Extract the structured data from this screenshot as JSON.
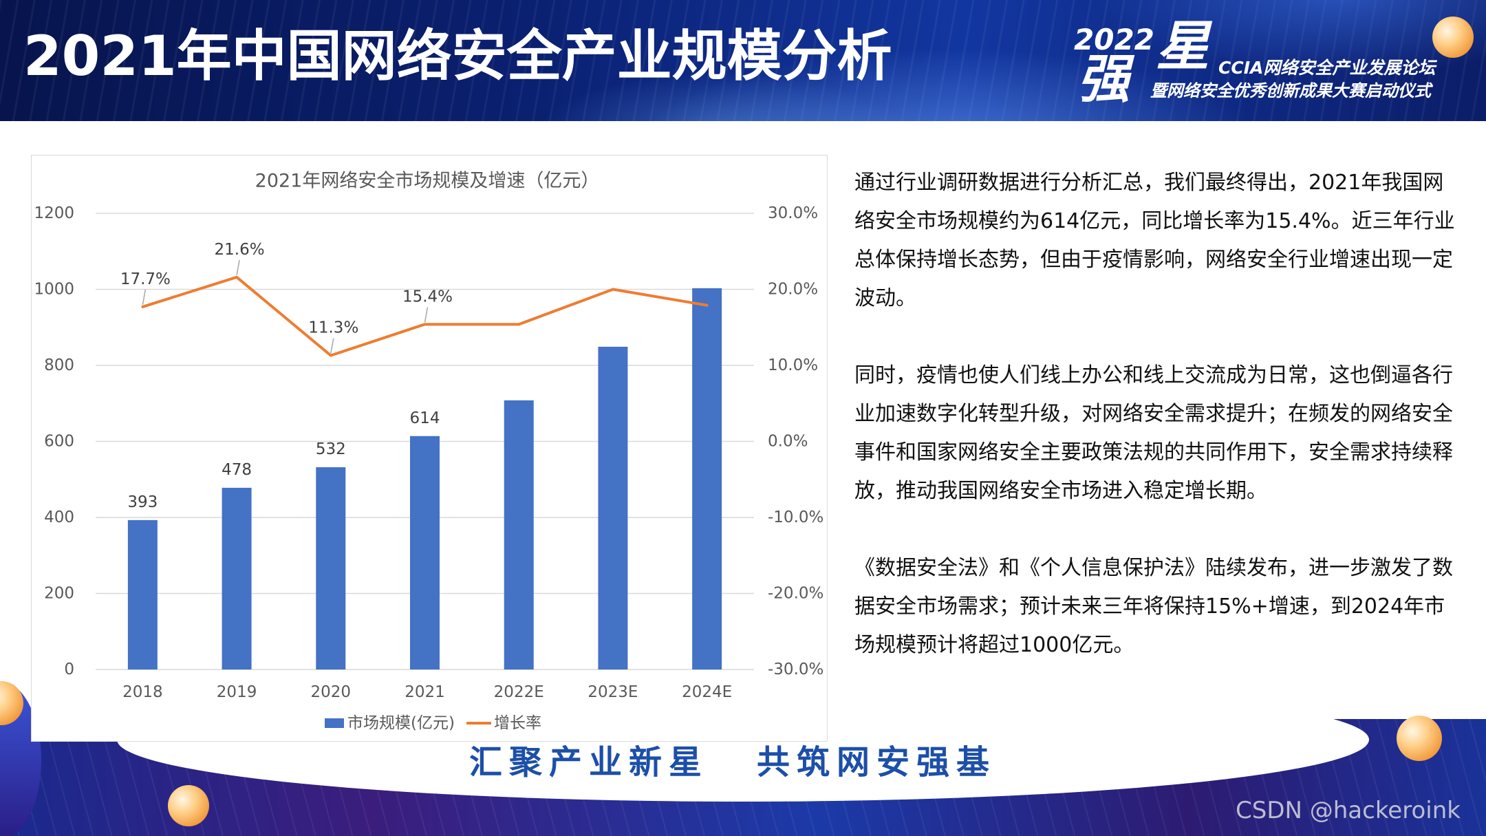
{
  "header": {
    "title": "2021年中国网络安全产业规模分析"
  },
  "logo": {
    "year": "2022",
    "char_top": "星",
    "char_bottom": "强",
    "line1": "CCIA网络安全产业发展论坛",
    "line2": "暨网络安全优秀创新成果大赛启动仪式"
  },
  "chart_data": {
    "type": "bar",
    "title": "2021年网络安全市场规模及增速（亿元）",
    "categories": [
      "2018",
      "2019",
      "2020",
      "2021",
      "2022E",
      "2023E",
      "2024E"
    ],
    "series": [
      {
        "name": "市场规模(亿元)",
        "type": "bar",
        "axis": "left",
        "values": [
          393,
          478,
          532,
          614,
          708,
          849,
          1003
        ],
        "data_labels": [
          "393",
          "478",
          "532",
          "614",
          "",
          "",
          ""
        ],
        "color": "#4472C4"
      },
      {
        "name": "增长率",
        "type": "line",
        "axis": "right",
        "unit": "%",
        "values": [
          17.7,
          21.6,
          11.3,
          15.4,
          15.4,
          20.0,
          17.9
        ],
        "data_labels": [
          "17.7%",
          "21.6%",
          "11.3%",
          "15.4%",
          "",
          "",
          ""
        ],
        "color": "#ED7D31"
      }
    ],
    "y_left": {
      "ylim": [
        0,
        1200
      ],
      "ticks": [
        "0",
        "200",
        "400",
        "600",
        "800",
        "1000",
        "1200"
      ]
    },
    "y_right": {
      "ylim": [
        -30,
        30
      ],
      "ticks": [
        "-30.0%",
        "-20.0%",
        "-10.0%",
        "0.0%",
        "10.0%",
        "20.0%",
        "30.0%"
      ]
    },
    "grid": true,
    "legend": "bottom"
  },
  "body": {
    "paragraphs": [
      "通过行业调研数据进行分析汇总，我们最终得出，2021年我国网络安全市场规模约为614亿元，同比增长率为15.4%。近三年行业总体保持增长态势，但由于疫情影响，网络安全行业增速出现一定波动。",
      "同时，疫情也使人们线上办公和线上交流成为日常，这也倒逼各行业加速数字化转型升级，对网络安全需求提升；在频发的网络安全事件和国家网络安全主要政策法规的共同作用下，安全需求持续释放，推动我国网络安全市场进入稳定增长期。",
      "《数据安全法》和《个人信息保护法》陆续发布，进一步激发了数据安全市场需求；预计未来三年将保持15%+增速，到2024年市场规模预计将超过1000亿元。"
    ]
  },
  "footer": {
    "slogan_left": "汇聚产业新星",
    "slogan_right": "共筑网安强基"
  },
  "watermark": "CSDN @hackeroink",
  "colors": {
    "header_bg": "#0a2070",
    "slogan": "#1c4fa8",
    "bar": "#4472C4",
    "line": "#ED7D31"
  }
}
